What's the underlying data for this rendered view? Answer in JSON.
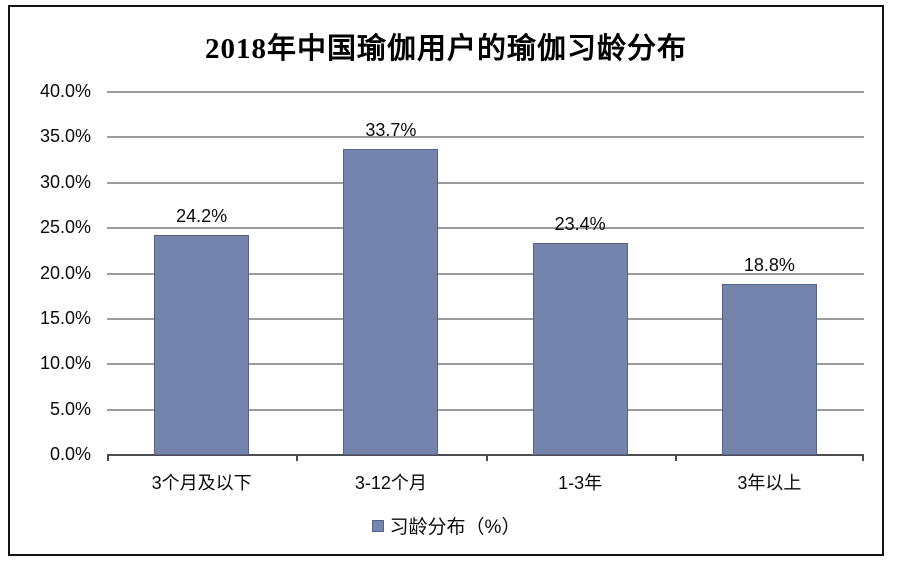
{
  "chart_data": {
    "type": "bar",
    "title": "2018年中国瑜伽用户的瑜伽习龄分布",
    "categories": [
      "3个月及以下",
      "3-12个月",
      "1-3年",
      "3年以上"
    ],
    "values": [
      24.2,
      33.7,
      23.4,
      18.8
    ],
    "value_labels": [
      "24.2%",
      "33.7%",
      "23.4%",
      "18.8%"
    ],
    "series_name": "习龄分布（%）",
    "xlabel": "",
    "ylabel": "",
    "ylim": [
      0,
      40
    ],
    "ytick_step": 5,
    "ytick_labels": [
      "0.0%",
      "5.0%",
      "10.0%",
      "15.0%",
      "20.0%",
      "25.0%",
      "30.0%",
      "35.0%",
      "40.0%"
    ],
    "grid": true,
    "legend_position": "bottom",
    "colors": {
      "bar_fill": "#7484ab",
      "bar_border": "#55628e",
      "gridline": "#9c9c9c",
      "axis_line": "#4d4d4d",
      "text": "#0a0a0a",
      "frame_border": "#141414",
      "background": "#ffffff"
    }
  },
  "legend": {
    "label": "习龄分布（%）"
  }
}
